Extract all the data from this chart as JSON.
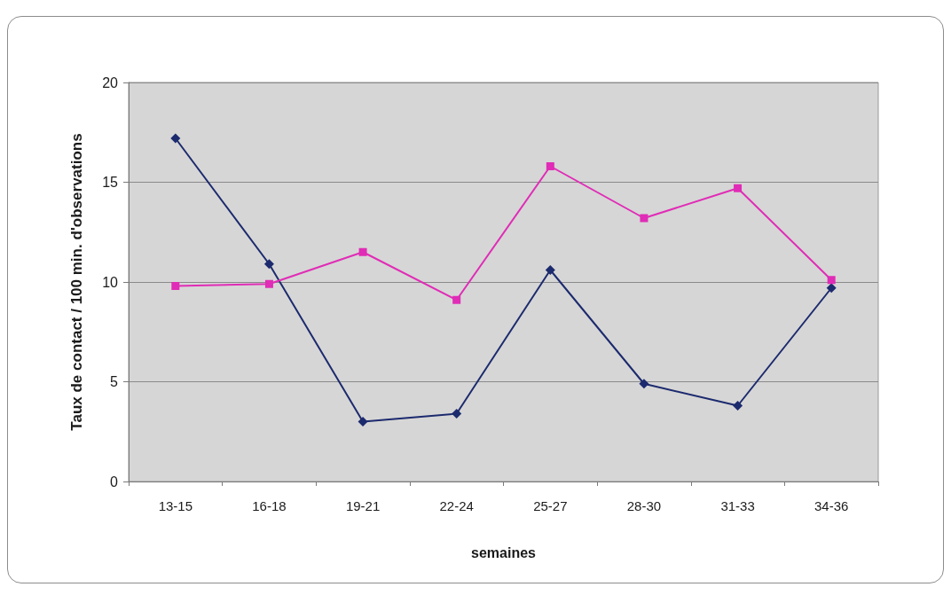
{
  "chart_data": {
    "type": "line",
    "xlabel": "semaines",
    "ylabel": "Taux de contact / 100 min. d'observations",
    "categories": [
      "13-15",
      "16-18",
      "19-21",
      "22-24",
      "25-27",
      "28-30",
      "31-33",
      "34-36"
    ],
    "series": [
      {
        "color": "#1c2a6e",
        "marker": "diamond",
        "values": [
          17.2,
          10.9,
          3.0,
          3.4,
          10.6,
          4.9,
          3.8,
          9.7
        ]
      },
      {
        "color": "#e02cb6",
        "marker": "square",
        "values": [
          9.8,
          9.9,
          11.5,
          9.1,
          15.8,
          13.2,
          14.7,
          10.1
        ]
      }
    ],
    "ylim": [
      0,
      20
    ],
    "yticks": [
      0,
      5,
      10,
      15,
      20
    ],
    "grid": "y",
    "line_style": "solid"
  }
}
